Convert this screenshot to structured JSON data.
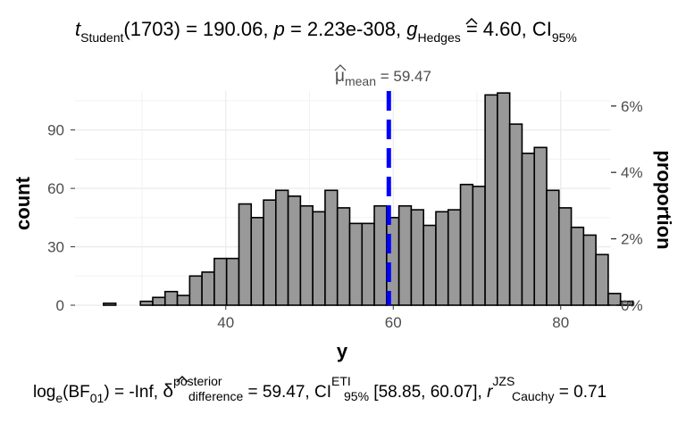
{
  "title": {
    "t_label": "t",
    "t_sub": "Student",
    "t_df": "(1703) = 190.06, ",
    "p_label": "p",
    "p_value": " = 2.23e-308, ",
    "g_hat": "g",
    "g_sub": "Hedges",
    "g_value": " = 4.60, CI",
    "ci_sub": "95%"
  },
  "caption": {
    "log": "log",
    "log_sub": "e",
    "bf": "(BF",
    "bf_sub": "01",
    "bf_value": ") = -Inf, ",
    "delta": "δ",
    "delta_sup": "posterior",
    "delta_sub": "difference",
    "delta_value": " = 59.47, CI",
    "ci_sup": "ETI",
    "ci_sub": "95%",
    "ci_value": " [58.85, 60.07], ",
    "r": "r",
    "r_sup": "JZS",
    "r_sub": "Cauchy",
    "r_value": " = 0.71"
  },
  "mean_annotation": {
    "mu": "μ",
    "mu_sub": "mean",
    "text": " = 59.47"
  },
  "chart_data": {
    "type": "bar",
    "xlabel": "y",
    "ylabel": "count",
    "y2label": "proportion",
    "xlim": [
      22,
      86
    ],
    "ylim": [
      0,
      110
    ],
    "x_ticks": [
      40,
      60,
      80
    ],
    "y_ticks": [
      0,
      30,
      60,
      90
    ],
    "y2_ticks": [
      "0%",
      "2%",
      "4%",
      "6%"
    ],
    "y2_tick_counts": [
      0,
      34.1,
      68.2,
      102.3
    ],
    "bin_width": 1.47,
    "bin_start": 25.4,
    "values": [
      1,
      0,
      0,
      2,
      4,
      7,
      5,
      15,
      17,
      24,
      24,
      52,
      45,
      54,
      59,
      56,
      51,
      48,
      59,
      50,
      42,
      42,
      51,
      45,
      51,
      49,
      41,
      48,
      49,
      62,
      61,
      108,
      109,
      93,
      78,
      81,
      59,
      50,
      40,
      36,
      26,
      6,
      2
    ],
    "grid": true,
    "bar_fill": "#999999",
    "bar_stroke": "#000000",
    "mean_line": {
      "x": 59.47,
      "color": "#0000ff"
    }
  }
}
